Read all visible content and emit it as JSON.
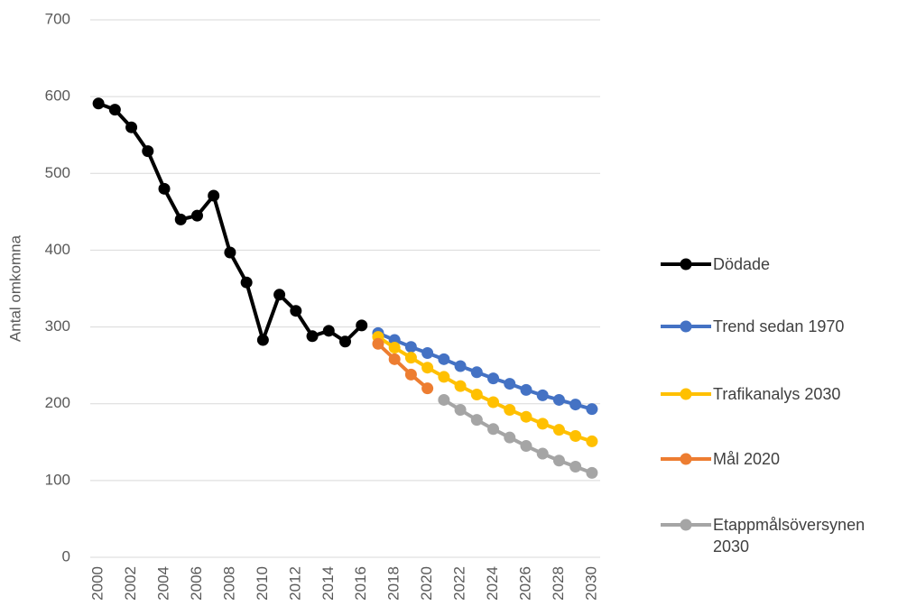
{
  "chart_data": {
    "type": "line",
    "y_label": "Antal omkomna",
    "x": [
      2000,
      2001,
      2002,
      2003,
      2004,
      2005,
      2006,
      2007,
      2008,
      2009,
      2010,
      2011,
      2012,
      2013,
      2014,
      2015,
      2016,
      2017,
      2018,
      2019,
      2020,
      2021,
      2022,
      2023,
      2024,
      2025,
      2026,
      2027,
      2028,
      2029,
      2030
    ],
    "xlim": [
      1999.5,
      2030.5
    ],
    "xticks": [
      2000,
      2002,
      2004,
      2006,
      2008,
      2010,
      2012,
      2014,
      2016,
      2018,
      2020,
      2022,
      2024,
      2026,
      2028,
      2030
    ],
    "ylim": [
      0,
      700
    ],
    "yticks": [
      0,
      100,
      200,
      300,
      400,
      500,
      600,
      700
    ],
    "grid": true,
    "legend": "right",
    "series": [
      {
        "name": "Dödade",
        "color": "#000000",
        "values": [
          591,
          583,
          560,
          529,
          480,
          440,
          445,
          471,
          397,
          358,
          283,
          342,
          321,
          288,
          295,
          281,
          302,
          null,
          null,
          null,
          null,
          null,
          null,
          null,
          null,
          null,
          null,
          null,
          null,
          null,
          null
        ]
      },
      {
        "name": "Trend sedan 1970",
        "color": "#4472c4",
        "values": [
          null,
          null,
          null,
          null,
          null,
          null,
          null,
          null,
          null,
          null,
          null,
          null,
          null,
          null,
          null,
          null,
          null,
          292,
          283,
          274,
          266,
          258,
          249,
          241,
          233,
          226,
          218,
          211,
          205,
          199,
          193
        ]
      },
      {
        "name": "Trafikanalys 2030",
        "color": "#ffc000",
        "values": [
          null,
          null,
          null,
          null,
          null,
          null,
          null,
          null,
          null,
          null,
          null,
          null,
          null,
          null,
          null,
          null,
          null,
          287,
          273,
          260,
          247,
          235,
          223,
          212,
          202,
          192,
          183,
          174,
          166,
          158,
          151
        ]
      },
      {
        "name": "Mål 2020",
        "color": "#ed7d31",
        "values": [
          null,
          null,
          null,
          null,
          null,
          null,
          null,
          null,
          null,
          null,
          null,
          null,
          null,
          null,
          null,
          null,
          null,
          278,
          258,
          238,
          220,
          null,
          null,
          null,
          null,
          null,
          null,
          null,
          null,
          null,
          null
        ]
      },
      {
        "name": "Etappmålsöversynen 2030",
        "color": "#a5a5a5",
        "values": [
          null,
          null,
          null,
          null,
          null,
          null,
          null,
          null,
          null,
          null,
          null,
          null,
          null,
          null,
          null,
          null,
          null,
          null,
          null,
          null,
          null,
          205,
          192,
          179,
          167,
          156,
          145,
          135,
          126,
          118,
          110
        ]
      }
    ]
  }
}
